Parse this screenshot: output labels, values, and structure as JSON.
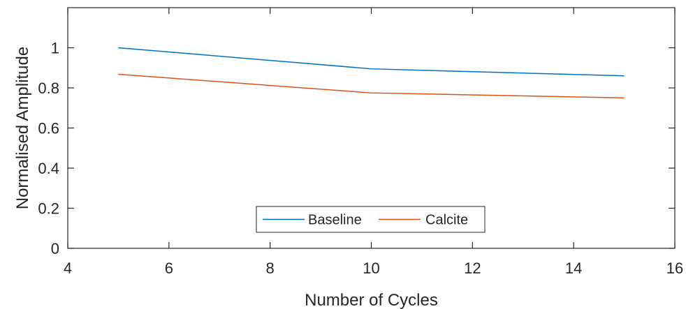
{
  "chart_data": {
    "type": "line",
    "title": "",
    "xlabel": "Number of Cycles",
    "ylabel": "Normalised Amplitude",
    "xlim": [
      4,
      16
    ],
    "ylim": [
      0,
      1.2
    ],
    "xticks": [
      4,
      6,
      8,
      10,
      12,
      14,
      16
    ],
    "xtick_labels": [
      "4",
      "6",
      "8",
      "10",
      "12",
      "14",
      "16"
    ],
    "yticks": [
      0,
      0.2,
      0.4,
      0.6,
      0.8,
      1
    ],
    "ytick_labels": [
      "0",
      "0.2",
      "0.4",
      "0.6",
      "0.8",
      "1"
    ],
    "grid": false,
    "legend_position": "bottom-center",
    "legend_orientation": "horizontal",
    "series": [
      {
        "name": "Baseline",
        "color": "#0072BD",
        "x": [
          5,
          10,
          15
        ],
        "y": [
          1.0,
          0.895,
          0.86
        ]
      },
      {
        "name": "Calcite",
        "color": "#D95319",
        "x": [
          5,
          10,
          15
        ],
        "y": [
          0.868,
          0.775,
          0.75
        ]
      }
    ]
  }
}
